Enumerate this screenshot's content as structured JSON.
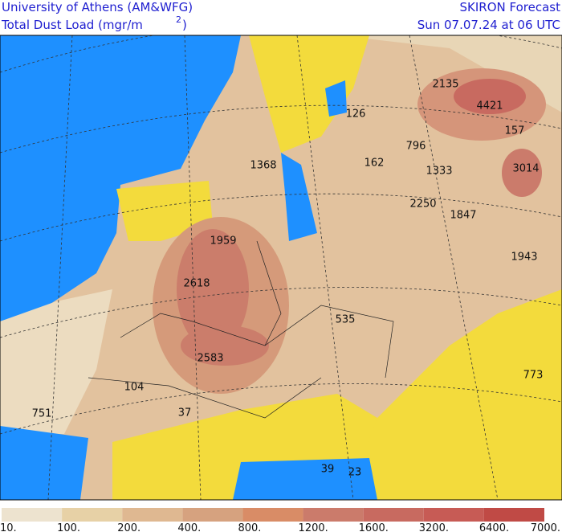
{
  "header": {
    "title": "University of Athens (AM&WFG)",
    "subtitle": "Total Dust Load (mgr/m",
    "subtitle_superscript": "2",
    "subtitle_end": ")",
    "product": "SKIRON Forecast",
    "valid_time": "Sun 07.07.24 at 06 UTC"
  },
  "map_labels": [
    "2135",
    "4421",
    "126",
    "157",
    "796",
    "162",
    "1368",
    "1333",
    "3014",
    "2250",
    "1847",
    "1959",
    "1943",
    "2618",
    "535",
    "2583",
    "773",
    "104",
    "751",
    "37",
    "39",
    "23"
  ],
  "colorbar": {
    "labels": [
      "10.",
      "100.",
      "200.",
      "400.",
      "800.",
      "1200.",
      "1600.",
      "3200.",
      "6400.",
      "7000."
    ],
    "colors": [
      "#ede3cf",
      "#e7d1a6",
      "#dfb891",
      "#d6a27f",
      "#d98c66",
      "#cb7b6b",
      "#c86a60",
      "#c75b55",
      "#c04a45"
    ]
  }
}
